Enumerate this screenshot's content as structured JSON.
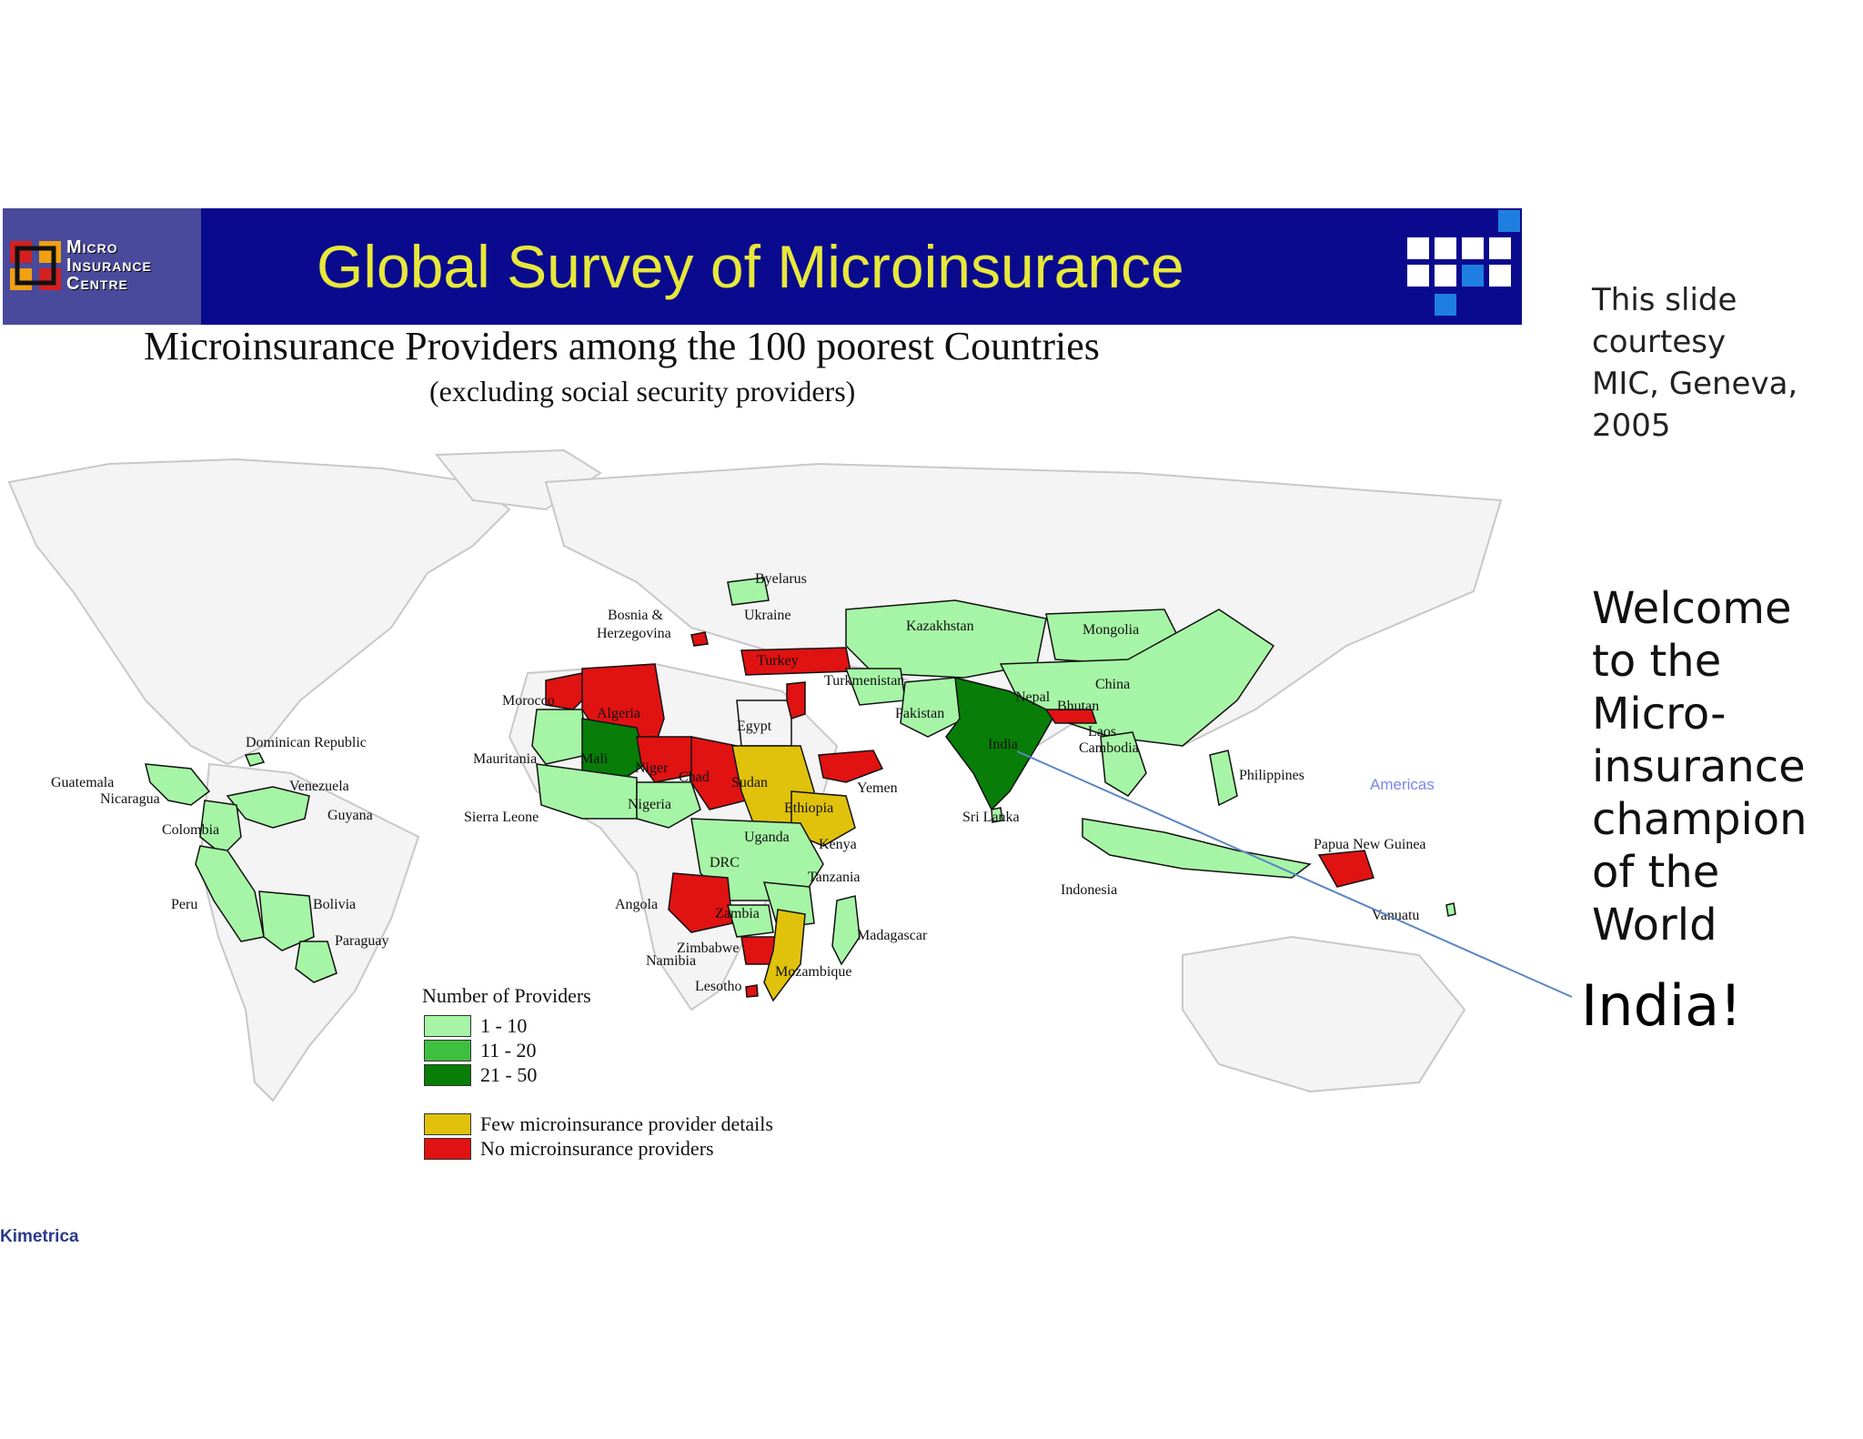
{
  "banner": {
    "logo_lines": [
      "Micro",
      "Insurance",
      "Centre"
    ],
    "title": "Global Survey of Microinsurance"
  },
  "map": {
    "title": "Microinsurance Providers among the 100 poorest Countries",
    "subtitle": "(excluding social security providers)",
    "colors": {
      "p1_10": "#a6f5a6",
      "p11_20": "#3fbf3f",
      "p21_50": "#087d08",
      "few": "#e0c20c",
      "none": "#e01212",
      "land": "#f4f4f4",
      "coast": "#c8c8c8"
    },
    "country_labels": [
      "Byelarus",
      "Ukraine",
      "Bosnia &",
      "Herzegovina",
      "Turkey",
      "Turkmenistan",
      "Kazakhstan",
      "Mongolia",
      "China",
      "Nepal",
      "Bhutan",
      "Pakistan",
      "India",
      "Laos",
      "Cambodia",
      "Philippines",
      "Sri Lanka",
      "Indonesia",
      "Papua New Guinea",
      "Vanuatu",
      "Morocco",
      "Algeria",
      "Mauritania",
      "Mali",
      "Niger",
      "Chad",
      "Sudan",
      "Egypt",
      "Yemen",
      "Ethiopia",
      "Sierra Leone",
      "Nigeria",
      "Uganda",
      "Kenya",
      "DRC",
      "Tanzania",
      "Angola",
      "Zambia",
      "Zimbabwe",
      "Namibia",
      "Lesotho",
      "Mozambique",
      "Madagascar",
      "Dominican Republic",
      "Guatemala",
      "Nicaragua",
      "Venezuela",
      "Guyana",
      "Colombia",
      "Peru",
      "Bolivia",
      "Paraguay"
    ],
    "legend": {
      "title": "Number of Providers",
      "items": [
        {
          "label": "1 - 10",
          "color": "#a6f5a6"
        },
        {
          "label": "11 - 20",
          "color": "#3fbf3f"
        },
        {
          "label": "21 - 50",
          "color": "#087d08"
        },
        {
          "label": "Few microinsurance provider details",
          "color": "#e0c20c"
        },
        {
          "label": "No microinsurance providers",
          "color": "#e01212"
        }
      ]
    },
    "americas_tag": "Americas",
    "footer_logo": "Kimetrica"
  },
  "side": {
    "courtesy": "This slide\ncourtesy\nMIC, Geneva,\n2005",
    "welcome": "Welcome\nto the\nMicro-\ninsurance\nchampion\nof the\nWorld",
    "india_callout": "India!"
  }
}
